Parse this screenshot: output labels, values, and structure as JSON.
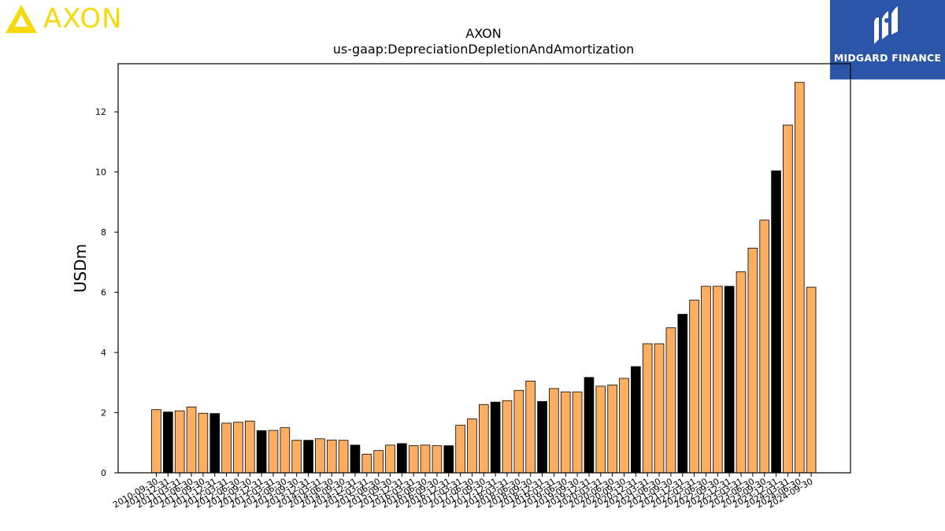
{
  "logo_left": {
    "text": "AXON",
    "color": "#f5d90a"
  },
  "logo_right": {
    "text": "MIDGARD FINANCE",
    "background": "#2b56a8"
  },
  "chart_data": {
    "type": "bar",
    "title": "AXON",
    "subtitle": "us-gaap:DepreciationDepletionAndAmortization",
    "xlabel": "",
    "ylabel": "USDm",
    "ylim": [
      0,
      13.6
    ],
    "yticks": [
      0,
      2,
      4,
      6,
      8,
      10,
      12
    ],
    "grid": false,
    "colors": {
      "quarter": "#fdae61",
      "annual": "#000000",
      "edge": "#000000"
    },
    "categories": [
      "2010-09-30",
      "2010-12-31",
      "2011-03-31",
      "2011-06-30",
      "2011-09-30",
      "2011-12-31",
      "2012-03-31",
      "2012-06-30",
      "2012-09-30",
      "2012-12-31",
      "2013-03-31",
      "2013-06-30",
      "2013-09-30",
      "2013-12-31",
      "2014-03-31",
      "2014-06-30",
      "2014-09-30",
      "2014-12-31",
      "2015-03-31",
      "2015-06-30",
      "2015-09-30",
      "2015-12-31",
      "2016-03-31",
      "2016-06-30",
      "2016-09-30",
      "2016-12-31",
      "2017-03-31",
      "2017-06-30",
      "2017-09-30",
      "2017-12-31",
      "2018-03-31",
      "2018-06-30",
      "2018-09-30",
      "2018-12-31",
      "2019-03-31",
      "2019-06-30",
      "2019-09-30",
      "2019-12-31",
      "2020-03-31",
      "2020-06-30",
      "2020-09-30",
      "2020-12-31",
      "2021-03-31",
      "2021-06-30",
      "2021-09-30",
      "2021-12-31",
      "2022-03-31",
      "2022-06-30",
      "2022-09-30",
      "2022-12-31",
      "2023-03-31",
      "2023-06-30",
      "2023-09-30",
      "2023-12-31",
      "2024-03-31",
      "2024-06-30",
      "2024-09-30"
    ],
    "values": [
      2.1,
      2.02,
      2.06,
      2.19,
      1.98,
      1.97,
      1.65,
      1.68,
      1.72,
      1.4,
      1.41,
      1.5,
      1.08,
      1.08,
      1.13,
      1.09,
      1.08,
      0.92,
      0.62,
      0.74,
      0.92,
      0.97,
      0.9,
      0.92,
      0.9,
      0.9,
      1.58,
      1.79,
      2.27,
      2.35,
      2.4,
      2.74,
      3.05,
      2.37,
      2.8,
      2.69,
      2.69,
      3.17,
      2.88,
      2.92,
      3.14,
      3.53,
      4.29,
      4.29,
      4.82,
      5.27,
      5.74,
      6.2,
      6.2,
      6.2,
      6.68,
      7.47,
      8.4,
      10.04,
      11.56,
      12.98,
      6.17
    ],
    "annual_flags": [
      0,
      1,
      0,
      0,
      0,
      1,
      0,
      0,
      0,
      1,
      0,
      0,
      0,
      1,
      0,
      0,
      0,
      1,
      0,
      0,
      0,
      1,
      0,
      0,
      0,
      1,
      0,
      0,
      0,
      1,
      0,
      0,
      0,
      1,
      0,
      0,
      0,
      1,
      0,
      0,
      0,
      1,
      0,
      0,
      0,
      1,
      0,
      0,
      0,
      1,
      0,
      0,
      0,
      1,
      0,
      0,
      0
    ]
  }
}
